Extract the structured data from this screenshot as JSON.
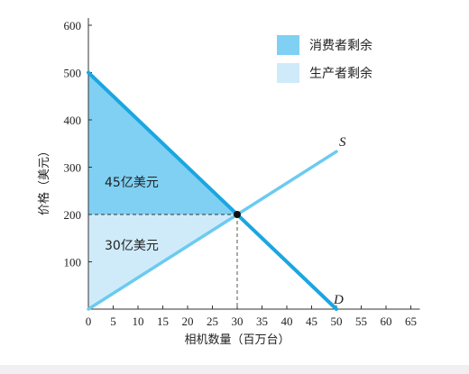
{
  "chart_data": {
    "type": "line",
    "xlabel": "相机数量（百万台）",
    "ylabel": "价格（美元）",
    "xlim": [
      0,
      65
    ],
    "ylim": [
      0,
      600
    ],
    "x_ticks": [
      0,
      5,
      10,
      15,
      20,
      25,
      30,
      35,
      40,
      45,
      50,
      55,
      60,
      65
    ],
    "y_ticks": [
      100,
      200,
      300,
      400,
      500,
      600
    ],
    "grid": false,
    "legend_position": "top-right",
    "series": [
      {
        "name": "D",
        "points": [
          [
            0,
            500
          ],
          [
            50,
            0
          ]
        ],
        "color": "#1aa6e0"
      },
      {
        "name": "S",
        "points": [
          [
            0,
            0
          ],
          [
            50,
            333
          ]
        ],
        "color": "#6ccaf0"
      }
    ],
    "equilibrium": {
      "x": 30,
      "y": 200
    },
    "areas": [
      {
        "name": "消费者剩余",
        "label": "45亿美元",
        "color": "#7fd0f3"
      },
      {
        "name": "生产者剩余",
        "label": "30亿美元",
        "color": "#cfebfa"
      }
    ]
  }
}
